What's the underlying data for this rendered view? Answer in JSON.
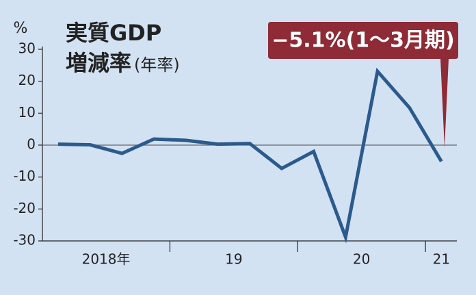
{
  "chart_data": {
    "type": "line",
    "title": "実質GDP",
    "subtitle": "増減率",
    "subtitle_note": "(年率)",
    "y_unit": "%",
    "annotation": "−5.1%(1〜3月期)",
    "categories": [
      "2018年",
      null,
      null,
      null,
      "19",
      null,
      null,
      null,
      "20",
      null,
      null,
      null,
      "21"
    ],
    "series": [
      {
        "name": "実質GDP増減率",
        "color": "#2c5a8c",
        "values": [
          0.3,
          0.1,
          -2.6,
          1.9,
          1.5,
          0.3,
          0.5,
          -7.3,
          -2.0,
          -28.8,
          23.1,
          11.7,
          -5.1
        ]
      }
    ],
    "ylim": [
      -30,
      30
    ],
    "yticks": [
      30,
      20,
      10,
      0,
      -10,
      -20,
      -30
    ],
    "zero_line": true
  }
}
